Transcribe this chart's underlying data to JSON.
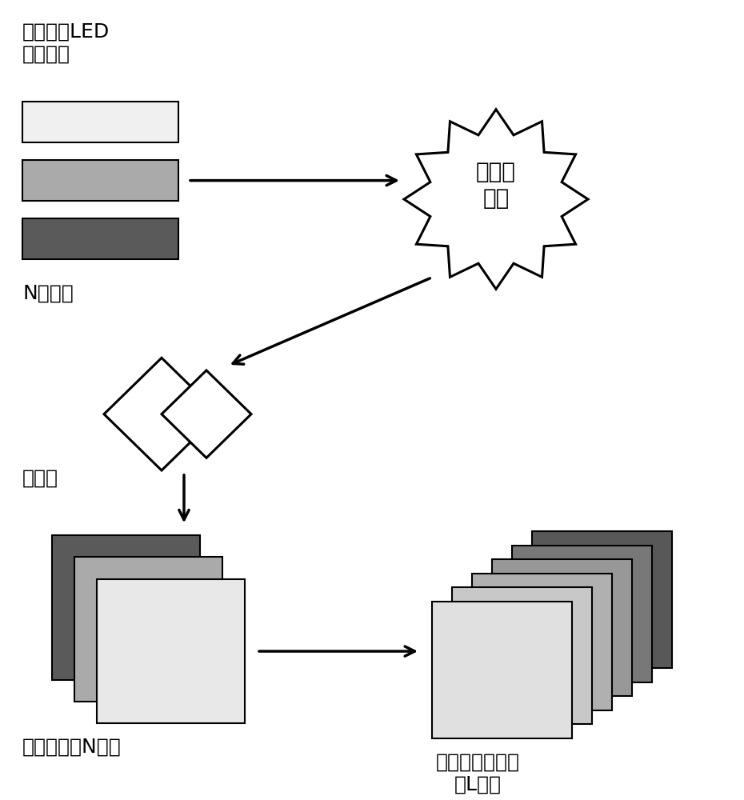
{
  "bg_color": "#ffffff",
  "label_led": "多波段的LED\n照明光源",
  "label_n": "N个波段",
  "label_detector": "探测器",
  "label_object": "被探测\n物体",
  "label_detect_img": "检测图像（N张）",
  "label_recon_img": "重建多光谱图像\n（L张）",
  "bar_colors": [
    "#f0f0f0",
    "#aaaaaa",
    "#5a5a5a"
  ],
  "stack_colors_left": [
    "#e8e8e8",
    "#aaaaaa",
    "#5a5a5a"
  ],
  "stack_colors_right": [
    "#e0e0e0",
    "#c8c8c8",
    "#b0b0b0",
    "#989898",
    "#787878",
    "#585858"
  ],
  "font_size_label": 18,
  "font_size_small": 16
}
